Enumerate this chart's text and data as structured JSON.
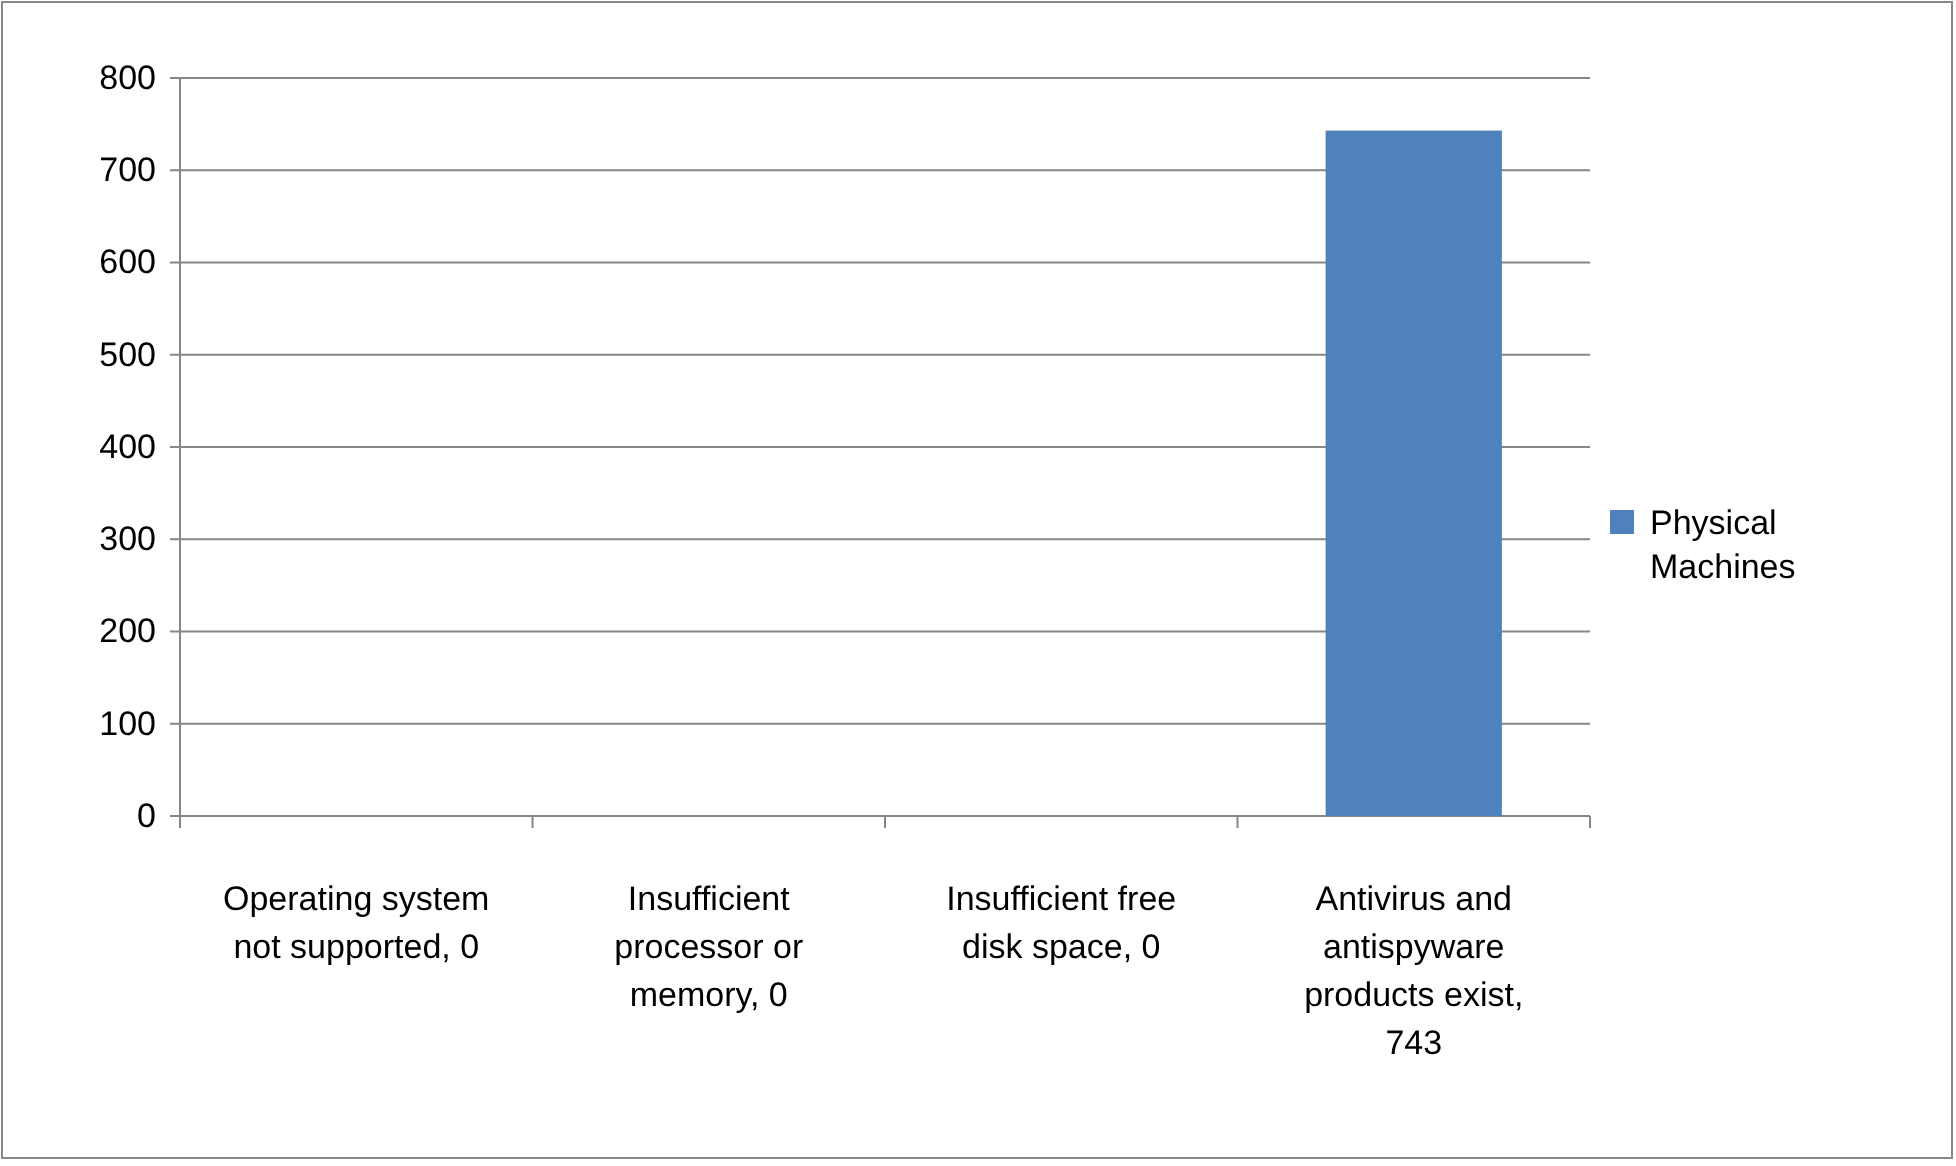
{
  "chart_data": {
    "type": "bar",
    "categories": [
      "Operating system not supported, 0",
      "Insufficient processor or memory, 0",
      "Insufficient free disk space, 0",
      "Antivirus and antispyware products exist, 743"
    ],
    "series": [
      {
        "name": "Physical Machines",
        "color": "#4f81bd",
        "values": [
          0,
          0,
          0,
          743
        ]
      }
    ],
    "ylim": [
      0,
      800
    ],
    "yticks": [
      0,
      100,
      200,
      300,
      400,
      500,
      600,
      700,
      800
    ],
    "grid": "y",
    "legend": "right"
  }
}
